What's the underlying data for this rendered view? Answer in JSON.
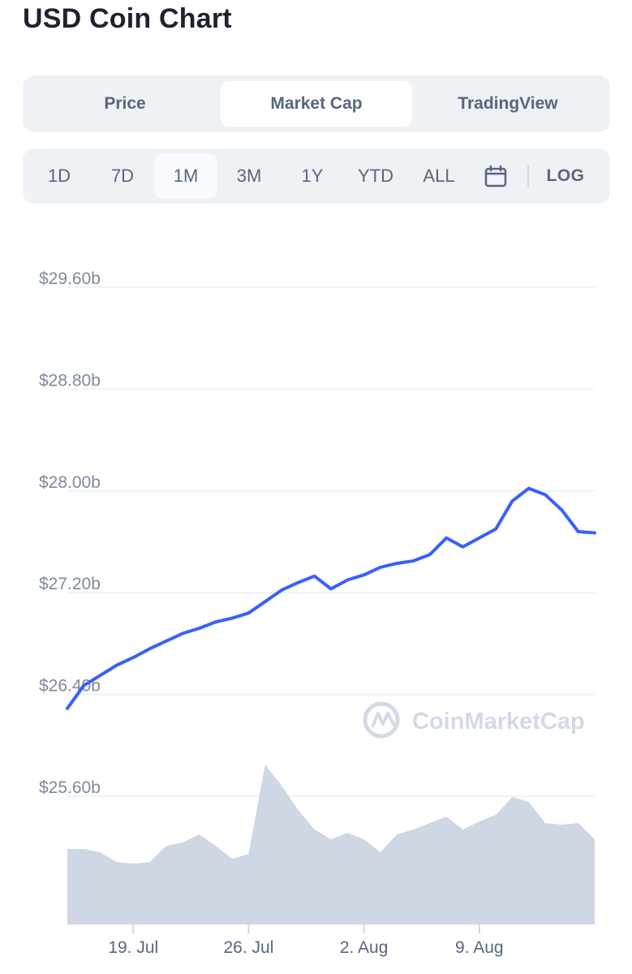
{
  "title": "USD Coin Chart",
  "tabs": [
    {
      "label": "Price",
      "active": false
    },
    {
      "label": "Market Cap",
      "active": true
    },
    {
      "label": "TradingView",
      "active": false
    }
  ],
  "ranges": [
    {
      "label": "1D",
      "active": false
    },
    {
      "label": "7D",
      "active": false
    },
    {
      "label": "1M",
      "active": true
    },
    {
      "label": "3M",
      "active": false
    },
    {
      "label": "1Y",
      "active": false
    },
    {
      "label": "YTD",
      "active": false
    },
    {
      "label": "ALL",
      "active": false
    }
  ],
  "calendar_icon": "calendar-icon",
  "log_label": "LOG",
  "watermark": "CoinMarketCap",
  "colors": {
    "line": "#3861fb",
    "volume": "#cfd6e4",
    "grid": "#eff2f5",
    "watermark": "#d3dae6"
  },
  "chart_data": {
    "type": "line",
    "title": "",
    "ylabel": "",
    "xlabel": "",
    "y_tick_values": [
      29.6,
      28.8,
      28.0,
      27.2,
      26.4,
      25.6
    ],
    "y_tick_labels": [
      "$29.60b",
      "$28.80b",
      "$28.00b",
      "$27.20b",
      "$26.40b",
      "$25.60b"
    ],
    "ylim": [
      25.6,
      29.6
    ],
    "xlim": [
      "2021-07-15",
      "2021-08-16"
    ],
    "x_ticks": [
      {
        "label": "19. Jul",
        "date": "2021-07-19"
      },
      {
        "label": "26. Jul",
        "date": "2021-07-26"
      },
      {
        "label": "2. Aug",
        "date": "2021-08-02"
      },
      {
        "label": "9. Aug",
        "date": "2021-08-09"
      }
    ],
    "series": [
      {
        "kind": "market_cap",
        "x": [
          "2021-07-15",
          "2021-07-16",
          "2021-07-17",
          "2021-07-18",
          "2021-07-19",
          "2021-07-20",
          "2021-07-21",
          "2021-07-22",
          "2021-07-23",
          "2021-07-24",
          "2021-07-25",
          "2021-07-26",
          "2021-07-27",
          "2021-07-28",
          "2021-07-29",
          "2021-07-30",
          "2021-07-31",
          "2021-08-01",
          "2021-08-02",
          "2021-08-03",
          "2021-08-04",
          "2021-08-05",
          "2021-08-06",
          "2021-08-07",
          "2021-08-08",
          "2021-08-09",
          "2021-08-10",
          "2021-08-11",
          "2021-08-12",
          "2021-08-13",
          "2021-08-14",
          "2021-08-15",
          "2021-08-16"
        ],
        "y": [
          26.29,
          26.47,
          26.55,
          26.63,
          26.69,
          26.76,
          26.82,
          26.88,
          26.92,
          26.97,
          27.0,
          27.04,
          27.13,
          27.22,
          27.28,
          27.33,
          27.23,
          27.3,
          27.34,
          27.4,
          27.43,
          27.45,
          27.5,
          27.63,
          27.56,
          27.63,
          27.7,
          27.92,
          28.02,
          27.97,
          27.85,
          27.68,
          27.67
        ]
      },
      {
        "kind": "volume_relative",
        "x": [
          "2021-07-15",
          "2021-07-16",
          "2021-07-17",
          "2021-07-18",
          "2021-07-19",
          "2021-07-20",
          "2021-07-21",
          "2021-07-22",
          "2021-07-23",
          "2021-07-24",
          "2021-07-25",
          "2021-07-26",
          "2021-07-27",
          "2021-07-28",
          "2021-07-29",
          "2021-07-30",
          "2021-07-31",
          "2021-08-01",
          "2021-08-02",
          "2021-08-03",
          "2021-08-04",
          "2021-08-05",
          "2021-08-06",
          "2021-08-07",
          "2021-08-08",
          "2021-08-09",
          "2021-08-10",
          "2021-08-11",
          "2021-08-12",
          "2021-08-13",
          "2021-08-14",
          "2021-08-15",
          "2021-08-16"
        ],
        "y": [
          0.46,
          0.46,
          0.44,
          0.38,
          0.37,
          0.38,
          0.48,
          0.5,
          0.55,
          0.48,
          0.4,
          0.43,
          0.98,
          0.85,
          0.7,
          0.58,
          0.52,
          0.56,
          0.52,
          0.44,
          0.55,
          0.58,
          0.62,
          0.66,
          0.58,
          0.63,
          0.67,
          0.78,
          0.75,
          0.62,
          0.61,
          0.62,
          0.52
        ]
      }
    ],
    "grid": true,
    "legend": "none"
  }
}
